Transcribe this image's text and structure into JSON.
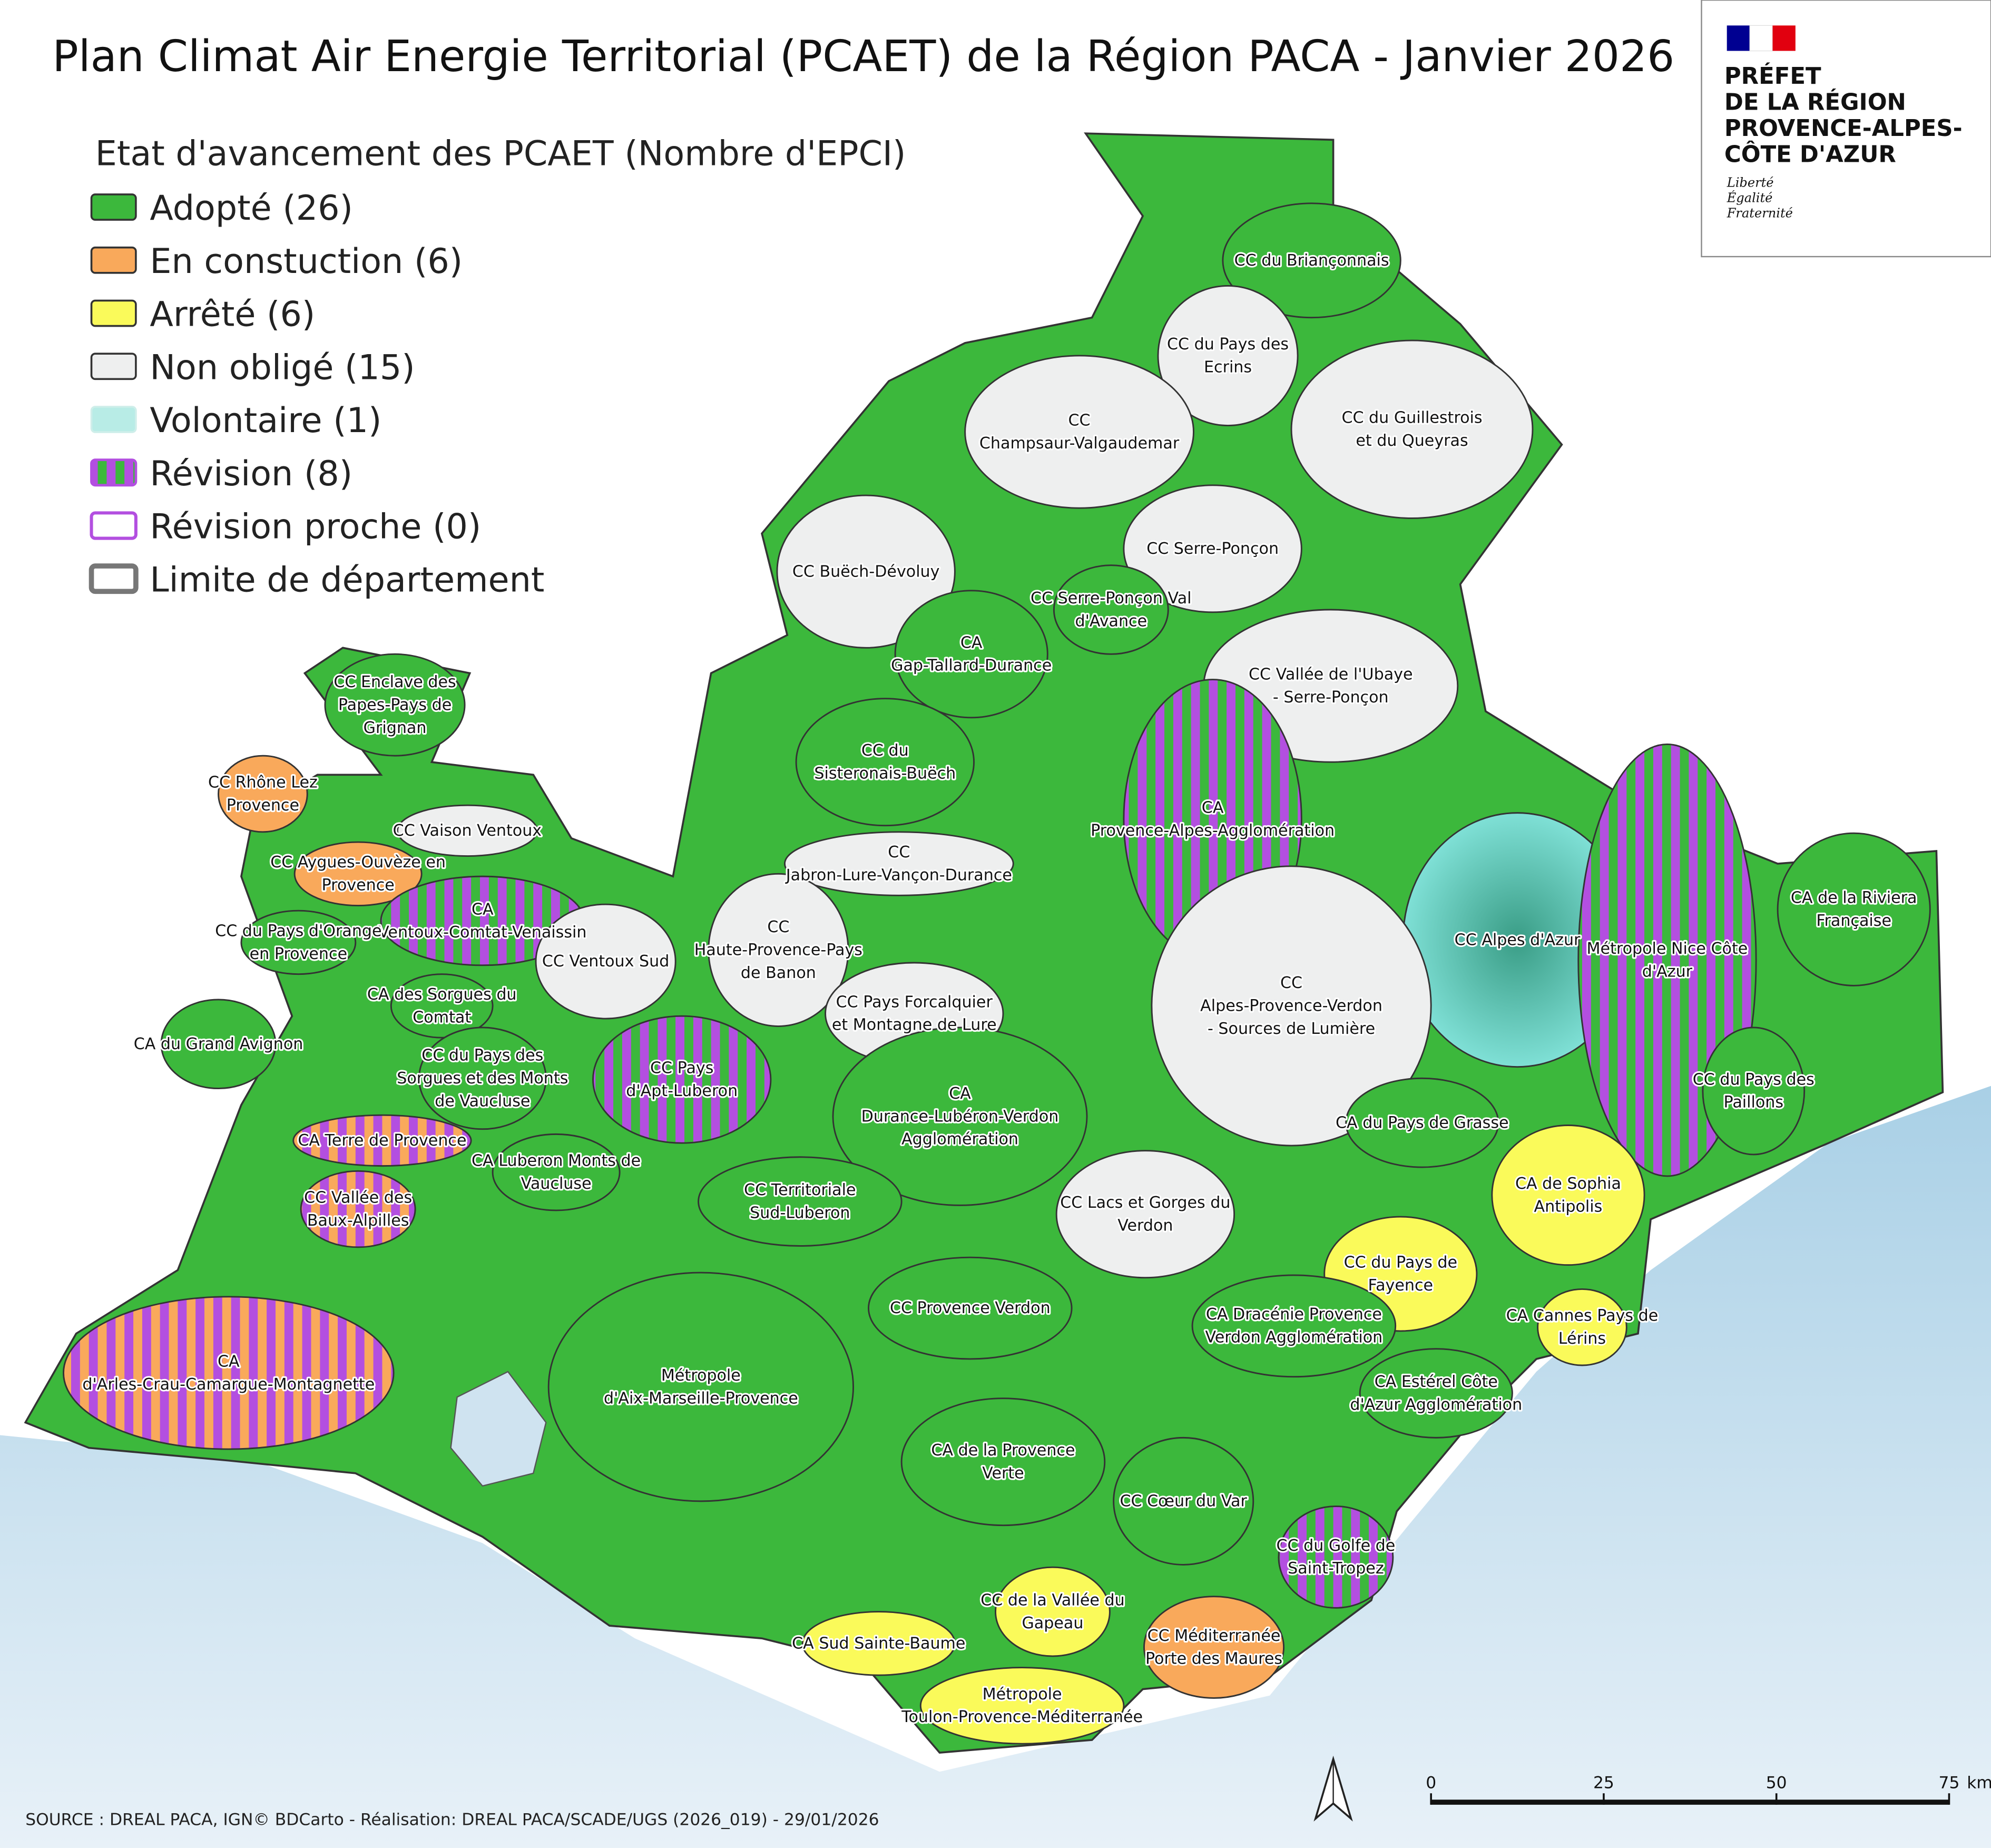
{
  "title": "Plan Climat Air Energie Territorial (PCAET) de la Région PACA - Janvier 2026",
  "legend": {
    "title": "Etat d'avancement des PCAET (Nombre d'EPCI)",
    "items": [
      "Adopté (26)",
      "En constuction (6)",
      "Arrêté (6)",
      "Non obligé (15)",
      "Volontaire (1)",
      "Révision (8)",
      "Révision proche (0)",
      "Limite de département"
    ]
  },
  "logo": {
    "lines": [
      "PRÉFET",
      "DE LA RÉGION",
      "PROVENCE-ALPES-",
      "CÔTE D'AZUR"
    ],
    "motto": [
      "Liberté",
      "Égalité",
      "Fraternité"
    ]
  },
  "regions": [
    {
      "lines": [
        "CC du Briançonnais"
      ]
    },
    {
      "lines": [
        "CC du Pays des",
        "Ecrins"
      ]
    },
    {
      "lines": [
        "CC",
        "Champsaur-Valgaudemar"
      ]
    },
    {
      "lines": [
        "CC du Guillestrois",
        "et du Queyras"
      ]
    },
    {
      "lines": [
        "CC Serre-Ponçon"
      ]
    },
    {
      "lines": [
        "CC Buëch-Dévoluy"
      ]
    },
    {
      "lines": [
        "CC Serre-Ponçon Val",
        "d'Avance"
      ]
    },
    {
      "lines": [
        "CA",
        "Gap-Tallard-Durance"
      ]
    },
    {
      "lines": [
        "CC Vallée de l'Ubaye",
        "- Serre-Ponçon"
      ]
    },
    {
      "lines": [
        "CC Enclave des",
        "Papes-Pays de",
        "Grignan"
      ]
    },
    {
      "lines": [
        "CC du",
        "Sisteronais-Buëch"
      ]
    },
    {
      "lines": [
        "CC Rhône Lez",
        "Provence"
      ]
    },
    {
      "lines": [
        "CA",
        "Provence-Alpes-Agglomération"
      ]
    },
    {
      "lines": [
        "CC Vaison Ventoux"
      ]
    },
    {
      "lines": [
        "CC Aygues-Ouvèze en",
        "Provence"
      ]
    },
    {
      "lines": [
        "CC",
        "Jabron-Lure-Vançon-Durance"
      ]
    },
    {
      "lines": [
        "CA",
        "Ventoux-Comtat-Venaissin"
      ]
    },
    {
      "lines": [
        "CC du Pays d'Orange",
        "en Provence"
      ]
    },
    {
      "lines": [
        "CC Ventoux Sud"
      ]
    },
    {
      "lines": [
        "CC",
        "Haute-Provence-Pays",
        "de Banon"
      ]
    },
    {
      "lines": [
        "CC Alpes d'Azur"
      ]
    },
    {
      "lines": [
        "Métropole Nice Côte",
        "d'Azur"
      ]
    },
    {
      "lines": [
        "CA de la Riviera",
        "Française"
      ]
    },
    {
      "lines": [
        "CC",
        "Alpes-Provence-Verdon",
        "- Sources de Lumière"
      ]
    },
    {
      "lines": [
        "CA des Sorgues du",
        "Comtat"
      ]
    },
    {
      "lines": [
        "CC Pays Forcalquier",
        "et Montagne de Lure"
      ]
    },
    {
      "lines": [
        "CA du Grand Avignon"
      ]
    },
    {
      "lines": [
        "CC du Pays des",
        "Sorgues et des Monts",
        "de Vaucluse"
      ]
    },
    {
      "lines": [
        "CC Pays",
        "d'Apt-Luberon"
      ]
    },
    {
      "lines": [
        "CA",
        "Durance-Lubéron-Verdon",
        "Agglomération"
      ]
    },
    {
      "lines": [
        "CC du Pays des",
        "Paillons"
      ]
    },
    {
      "lines": [
        "CA du Pays de Grasse"
      ]
    },
    {
      "lines": [
        "CA Terre de Provence"
      ]
    },
    {
      "lines": [
        "CA Luberon Monts de",
        "Vaucluse"
      ]
    },
    {
      "lines": [
        "CA de Sophia",
        "Antipolis"
      ]
    },
    {
      "lines": [
        "CC Vallée des",
        "Baux-Alpilles"
      ]
    },
    {
      "lines": [
        "CC Territoriale",
        "Sud-Luberon"
      ]
    },
    {
      "lines": [
        "CC Lacs et Gorges du",
        "Verdon"
      ]
    },
    {
      "lines": [
        "CC du Pays de",
        "Fayence"
      ]
    },
    {
      "lines": [
        "CC Provence Verdon"
      ]
    },
    {
      "lines": [
        "CA Dracénie Provence",
        "Verdon Agglomération"
      ]
    },
    {
      "lines": [
        "CA Cannes Pays de",
        "Lérins"
      ]
    },
    {
      "lines": [
        "CA",
        "d'Arles-Crau-Camargue-Montagnette"
      ]
    },
    {
      "lines": [
        "Métropole",
        "d'Aix-Marseille-Provence"
      ]
    },
    {
      "lines": [
        "CA Estérel Côte",
        "d'Azur Agglomération"
      ]
    },
    {
      "lines": [
        "CA de la Provence",
        "Verte"
      ]
    },
    {
      "lines": [
        "CC Cœur du Var"
      ]
    },
    {
      "lines": [
        "CC du Golfe de",
        "Saint-Tropez"
      ]
    },
    {
      "lines": [
        "CC de la Vallée du",
        "Gapeau"
      ]
    },
    {
      "lines": [
        "CA Sud Sainte-Baume"
      ]
    },
    {
      "lines": [
        "CC Méditerranée",
        "Porte des Maures"
      ]
    },
    {
      "lines": [
        "Métropole",
        "Toulon-Provence-Méditerranée"
      ]
    }
  ],
  "scale": {
    "ticks": [
      0,
      25,
      50,
      75
    ],
    "unit": "km"
  },
  "source": "SOURCE : DREAL PACA, IGN© BDCarto - Réalisation: DREAL PACA/SCADE/UGS (2026_019) - 29/01/2026"
}
